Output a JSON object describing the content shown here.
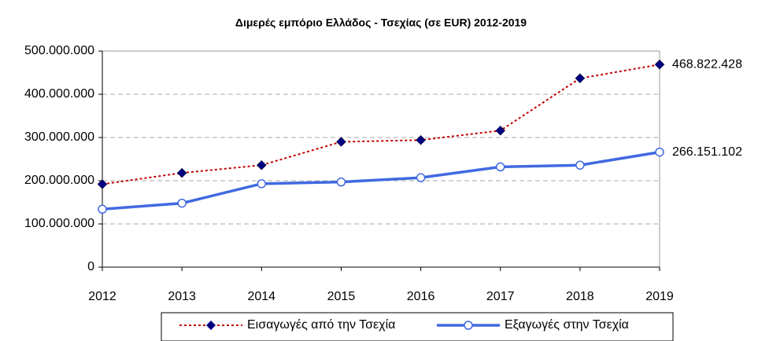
{
  "chart_data": {
    "type": "line",
    "title": "Διμερές εμπόριο Ελλάδος - Τσεχίας (σε EUR) 2012-2019",
    "x": [
      2012,
      2013,
      2014,
      2015,
      2016,
      2017,
      2018,
      2019
    ],
    "xlim": [
      2012,
      2019
    ],
    "xticks": [
      2012,
      2013,
      2014,
      2015,
      2016,
      2017,
      2018,
      2019
    ],
    "ylim": [
      0,
      500000000
    ],
    "yticks": [
      0,
      {
        "value": 100000000,
        "label": "100.000.000"
      },
      {
        "value": 200000000,
        "label": "200.000.000"
      },
      {
        "value": 300000000,
        "label": "300.000.000"
      },
      {
        "value": 400000000,
        "label": "400.000.000"
      },
      {
        "value": 500000000,
        "label": "500.000.000"
      }
    ],
    "grid": true,
    "legend": "bottom",
    "series": [
      {
        "name": "Εισαγωγές από την Τσεχία",
        "color": "#c00000",
        "marker_color": "#000080",
        "values": [
          192000000,
          218000000,
          236000000,
          290000000,
          294000000,
          316000000,
          437000000,
          468822428
        ],
        "value_labels": [
          null,
          null,
          null,
          null,
          null,
          null,
          null,
          "468.822.428"
        ]
      },
      {
        "name": "Εξαγωγές στην Τσεχία",
        "color": "#4169e1",
        "marker_color": "#ffffff",
        "values": [
          134000000,
          148000000,
          193000000,
          197000000,
          207000000,
          232000000,
          236000000,
          266151102
        ],
        "value_labels": [
          null,
          null,
          null,
          null,
          null,
          null,
          null,
          "266.151.102"
        ]
      }
    ]
  }
}
